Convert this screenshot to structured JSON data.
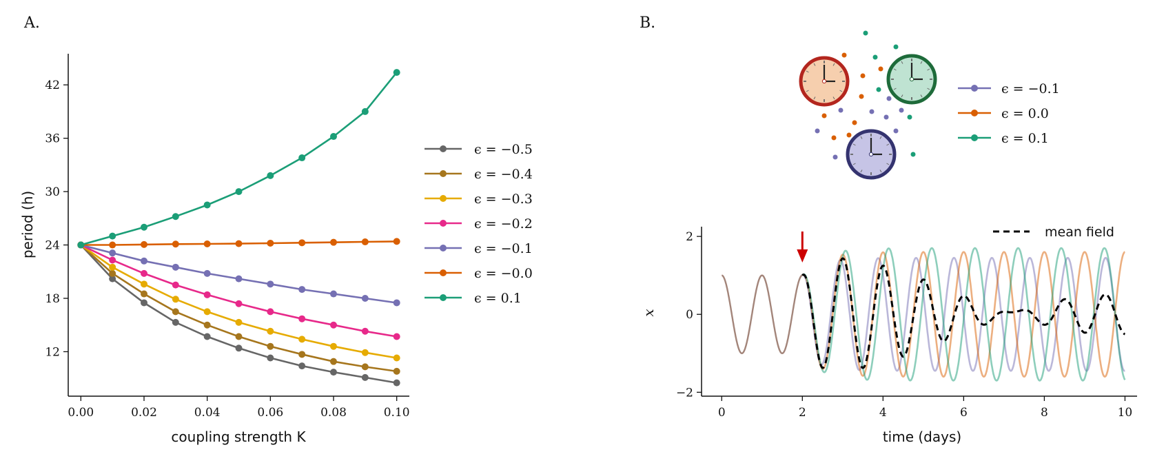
{
  "panels": {
    "a": "A.",
    "b": "B."
  },
  "chart_data": [
    {
      "type": "line",
      "xlabel": "coupling strength K",
      "ylabel": "period (h)",
      "xlim": [
        -0.004,
        0.104
      ],
      "ylim": [
        7,
        45.5
      ],
      "xticks": [
        "0.00",
        "0.02",
        "0.04",
        "0.06",
        "0.08",
        "0.10"
      ],
      "xtick_values": [
        0,
        0.02,
        0.04,
        0.06,
        0.08,
        0.1
      ],
      "yticks": [
        "12",
        "18",
        "24",
        "30",
        "36",
        "42"
      ],
      "ytick_values": [
        12,
        18,
        24,
        30,
        36,
        42
      ],
      "grid": false,
      "legend_position": "right",
      "x": [
        0,
        0.01,
        0.02,
        0.03,
        0.04,
        0.05,
        0.06,
        0.07,
        0.08,
        0.09,
        0.1
      ],
      "series": [
        {
          "name": "ϵ = −0.5",
          "color": "#666666",
          "values": [
            24,
            20.2,
            17.5,
            15.3,
            13.7,
            12.4,
            11.3,
            10.4,
            9.7,
            9.1,
            8.5
          ]
        },
        {
          "name": "ϵ = −0.4",
          "color": "#a6761d",
          "values": [
            24,
            20.8,
            18.5,
            16.5,
            15.0,
            13.7,
            12.6,
            11.7,
            10.9,
            10.3,
            9.8
          ]
        },
        {
          "name": "ϵ = −0.3",
          "color": "#e6ab02",
          "values": [
            24,
            21.5,
            19.6,
            17.9,
            16.5,
            15.3,
            14.3,
            13.4,
            12.6,
            11.9,
            11.3
          ]
        },
        {
          "name": "ϵ = −0.2",
          "color": "#e7298a",
          "values": [
            24,
            22.3,
            20.8,
            19.5,
            18.4,
            17.4,
            16.5,
            15.7,
            15.0,
            14.3,
            13.7
          ]
        },
        {
          "name": "ϵ = −0.1",
          "color": "#7570b3",
          "values": [
            24,
            23.1,
            22.2,
            21.5,
            20.8,
            20.2,
            19.6,
            19.0,
            18.5,
            18.0,
            17.5
          ]
        },
        {
          "name": "ϵ = −0.0",
          "color": "#d95f02",
          "values": [
            24,
            24.0,
            24.05,
            24.1,
            24.12,
            24.15,
            24.2,
            24.25,
            24.3,
            24.35,
            24.4
          ]
        },
        {
          "name": "ϵ = 0.1",
          "color": "#1b9e77",
          "values": [
            24,
            25.0,
            26.0,
            27.2,
            28.5,
            30.0,
            31.8,
            33.8,
            36.2,
            39.0,
            43.4
          ]
        }
      ]
    },
    {
      "type": "line",
      "xlabel": "time (days)",
      "ylabel": "x",
      "xlim": [
        -0.5,
        10.3
      ],
      "ylim": [
        -2.1,
        2.25
      ],
      "xticks": [
        "0",
        "2",
        "4",
        "6",
        "8",
        "10"
      ],
      "xtick_values": [
        0,
        2,
        4,
        6,
        8,
        10
      ],
      "yticks": [
        "−2",
        "0",
        "2"
      ],
      "ytick_values": [
        -2,
        0,
        2
      ],
      "grid": false,
      "legend_position": "top-right",
      "legend": "mean field",
      "annotation": {
        "type": "arrow",
        "color": "#cc0000",
        "at_time": 2.0
      },
      "coupling_onset_day": 2.0,
      "series": [
        {
          "name": "ϵ = −0.1",
          "color": "#7570b3",
          "period_days": 0.94,
          "amplitude": 1.45
        },
        {
          "name": "ϵ = 0.0",
          "color": "#d95f02",
          "period_days": 1.0,
          "amplitude": 1.6
        },
        {
          "name": "ϵ = 0.1",
          "color": "#1b9e77",
          "period_days": 1.07,
          "amplitude": 1.7
        },
        {
          "name": "mean field",
          "color": "#000000",
          "style": "dashed"
        }
      ]
    }
  ],
  "inset": {
    "clocks": [
      {
        "name": "orange-clock",
        "ring": "#b3261e",
        "face": "#f6cfae"
      },
      {
        "name": "green-clock",
        "ring": "#1e6b3a",
        "face": "#bfe3d2"
      },
      {
        "name": "purple-clock",
        "ring": "#34336f",
        "face": "#c6c4e6"
      }
    ],
    "legend": [
      "ϵ = −0.1",
      "ϵ = 0.0",
      "ϵ = 0.1"
    ],
    "legend_colors": [
      "#7570b3",
      "#d95f02",
      "#1b9e77"
    ]
  }
}
